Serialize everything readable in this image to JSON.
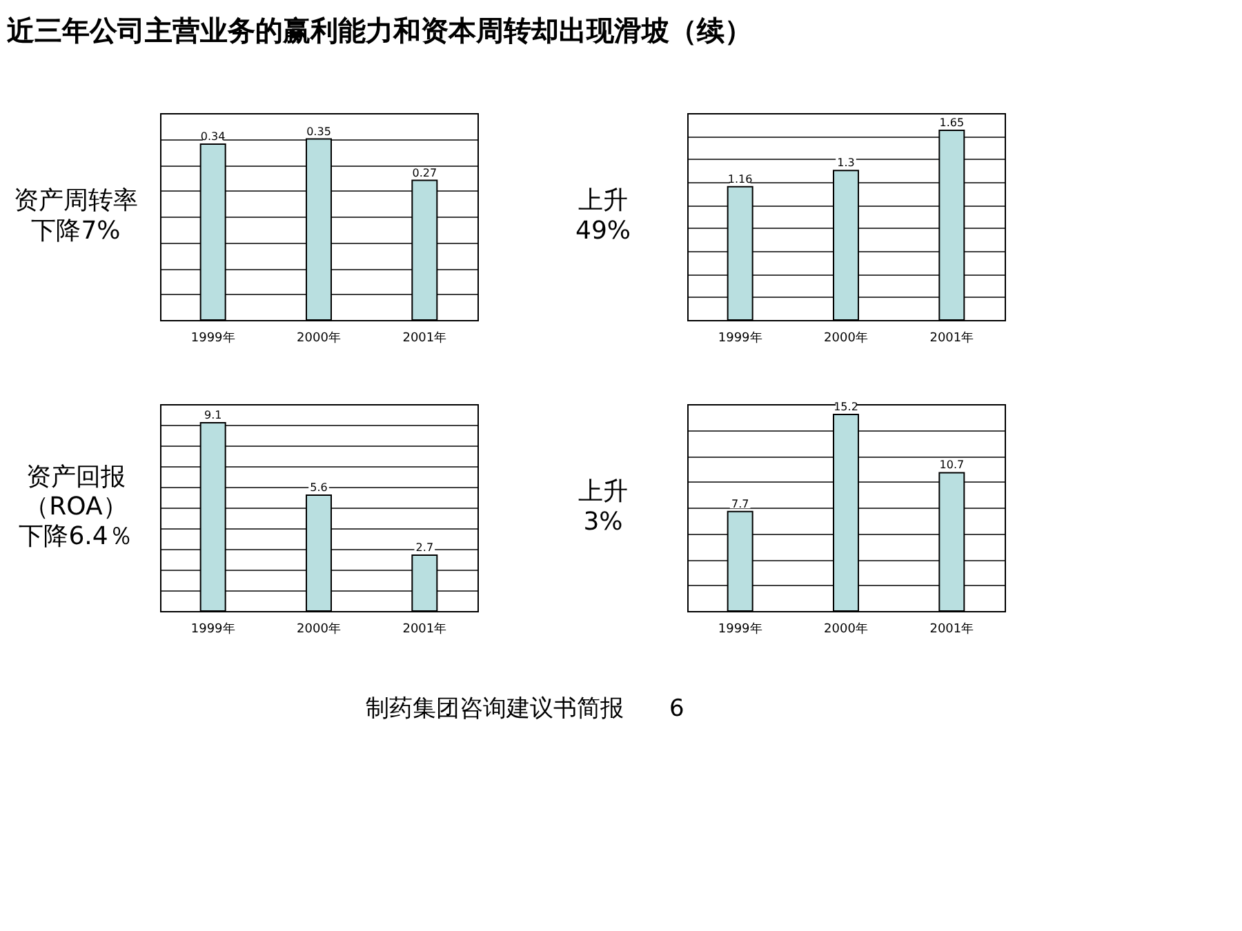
{
  "chart_data": [
    {
      "type": "other",
      "title": "近三年公司主营业务的赢利能力和资本周转却出现滑坡（续）",
      "annotations": [
        "制药集团咨询建议书简报",
        "6"
      ]
    },
    {
      "type": "bar",
      "categories": [
        "1999年",
        "2000年",
        "2001年"
      ],
      "values": [
        0.34,
        0.35,
        0.27
      ],
      "color": "#b9dfe0",
      "data_labels": true,
      "grid": "y",
      "ylim": [
        0,
        0.4
      ],
      "yticks": [
        {
          "value": 0,
          "label": null
        },
        {
          "value": 0.05,
          "label": null
        },
        {
          "value": 0.1,
          "label": null
        },
        {
          "value": 0.15,
          "label": null
        },
        {
          "value": 0.2,
          "label": null
        },
        {
          "value": 0.25,
          "label": null
        },
        {
          "value": 0.3,
          "label": null
        },
        {
          "value": 0.35,
          "label": null
        },
        {
          "value": 0.4,
          "label": null
        }
      ],
      "annotations": [
        "资产周转率",
        "下降7%"
      ]
    },
    {
      "type": "bar",
      "categories": [
        "1999年",
        "2000年",
        "2001年"
      ],
      "values": [
        1.16,
        1.3,
        1.65
      ],
      "color": "#b9dfe0",
      "data_labels": true,
      "grid": "y",
      "ylim": [
        0,
        1.8
      ],
      "yticks": [
        {
          "value": 0,
          "label": null
        },
        {
          "value": 0.2,
          "label": null
        },
        {
          "value": 0.4,
          "label": null
        },
        {
          "value": 0.6,
          "label": null
        },
        {
          "value": 0.8,
          "label": null
        },
        {
          "value": 1.0,
          "label": null
        },
        {
          "value": 1.2,
          "label": null
        },
        {
          "value": 1.4,
          "label": null
        },
        {
          "value": 1.6,
          "label": null
        },
        {
          "value": 1.8,
          "label": null
        }
      ],
      "annotations": [
        "上升",
        "49%"
      ]
    },
    {
      "type": "bar",
      "categories": [
        "1999年",
        "2000年",
        "2001年"
      ],
      "values": [
        9.1,
        5.6,
        2.7
      ],
      "color": "#b9dfe0",
      "data_labels": true,
      "grid": "y",
      "ylim": [
        0,
        10
      ],
      "yticks": [
        {
          "value": 0,
          "label": null
        },
        {
          "value": 1,
          "label": null
        },
        {
          "value": 2,
          "label": null
        },
        {
          "value": 3,
          "label": null
        },
        {
          "value": 4,
          "label": null
        },
        {
          "value": 5,
          "label": null
        },
        {
          "value": 6,
          "label": null
        },
        {
          "value": 7,
          "label": null
        },
        {
          "value": 8,
          "label": null
        },
        {
          "value": 9,
          "label": null
        },
        {
          "value": 10,
          "label": null
        }
      ],
      "annotations": [
        "资产回报",
        "（ROA）",
        "下降6.4％"
      ]
    },
    {
      "type": "bar",
      "categories": [
        "1999年",
        "2000年",
        "2001年"
      ],
      "values": [
        7.7,
        15.2,
        10.7
      ],
      "color": "#b9dfe0",
      "data_labels": true,
      "grid": "y",
      "ylim": [
        0,
        16
      ],
      "yticks": [
        {
          "value": 0,
          "label": null
        },
        {
          "value": 2,
          "label": null
        },
        {
          "value": 4,
          "label": null
        },
        {
          "value": 6,
          "label": null
        },
        {
          "value": 8,
          "label": null
        },
        {
          "value": 10,
          "label": null
        },
        {
          "value": 12,
          "label": null
        },
        {
          "value": 14,
          "label": null
        },
        {
          "value": 16,
          "label": null
        }
      ],
      "annotations": [
        "上升",
        "3%"
      ]
    }
  ]
}
